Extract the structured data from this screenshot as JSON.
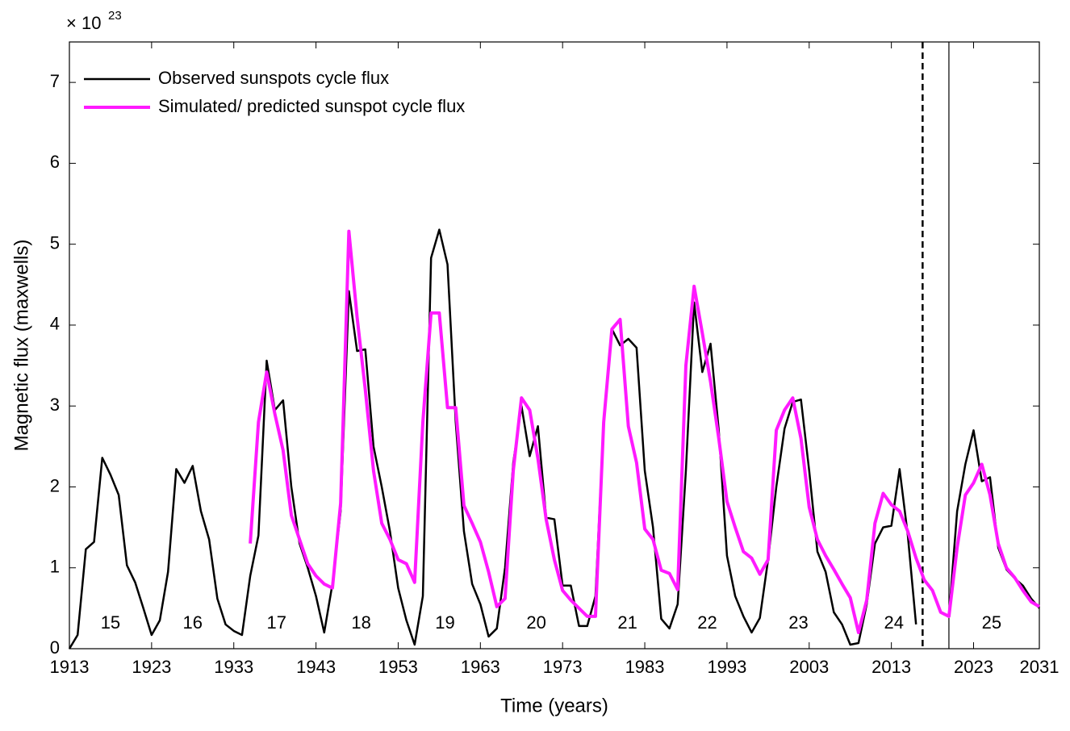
{
  "chart_data": {
    "type": "line",
    "xlabel": "Time (years)",
    "ylabel": "Magnetic flux (maxwells)",
    "multiplier": "× 10",
    "multiplier_exp": "23",
    "x": [
      1913,
      1914,
      1915,
      1916,
      1917,
      1918,
      1919,
      1920,
      1921,
      1922,
      1923,
      1924,
      1925,
      1926,
      1927,
      1928,
      1929,
      1930,
      1931,
      1932,
      1933,
      1934,
      1935,
      1936,
      1937,
      1938,
      1939,
      1940,
      1941,
      1942,
      1943,
      1944,
      1945,
      1946,
      1947,
      1948,
      1949,
      1950,
      1951,
      1952,
      1953,
      1954,
      1955,
      1956,
      1957,
      1958,
      1959,
      1960,
      1961,
      1962,
      1963,
      1964,
      1965,
      1966,
      1967,
      1968,
      1969,
      1970,
      1971,
      1972,
      1973,
      1974,
      1975,
      1976,
      1977,
      1978,
      1979,
      1980,
      1981,
      1982,
      1983,
      1984,
      1985,
      1986,
      1987,
      1988,
      1989,
      1990,
      1991,
      1992,
      1993,
      1994,
      1995,
      1996,
      1997,
      1998,
      1999,
      2000,
      2001,
      2002,
      2003,
      2004,
      2005,
      2006,
      2007,
      2008,
      2009,
      2010,
      2011,
      2012,
      2013,
      2014,
      2015,
      2016,
      2017,
      2018,
      2019,
      2020,
      2021,
      2022,
      2023,
      2024,
      2025,
      2026,
      2027,
      2028,
      2029,
      2030,
      2031
    ],
    "series": [
      {
        "name": "Observed sunspots cycle flux",
        "color": "#000000",
        "values": [
          0,
          0.17,
          1.23,
          1.32,
          2.36,
          2.15,
          1.9,
          1.03,
          0.82,
          0.5,
          0.17,
          0.35,
          0.95,
          2.22,
          2.05,
          2.26,
          1.7,
          1.35,
          0.62,
          0.3,
          0.22,
          0.17,
          0.9,
          1.4,
          3.56,
          2.95,
          3.07,
          2.0,
          1.3,
          1.0,
          0.65,
          0.2,
          0.8,
          1.7,
          4.42,
          3.68,
          3.7,
          2.5,
          2.0,
          1.45,
          0.75,
          0.35,
          0.05,
          0.65,
          4.83,
          5.18,
          4.75,
          2.8,
          1.45,
          0.8,
          0.55,
          0.15,
          0.25,
          1.0,
          2.3,
          3.0,
          2.38,
          2.75,
          1.62,
          1.6,
          0.78,
          0.78,
          0.28,
          0.28,
          0.65,
          2.8,
          3.95,
          3.75,
          3.83,
          3.72,
          2.2,
          1.5,
          0.37,
          0.25,
          0.55,
          2.2,
          4.28,
          3.42,
          3.77,
          2.7,
          1.15,
          0.65,
          0.4,
          0.2,
          0.38,
          1.1,
          2.0,
          2.72,
          3.05,
          3.08,
          2.2,
          1.2,
          0.95,
          0.45,
          0.3,
          0.05,
          0.07,
          0.55,
          1.3,
          1.5,
          1.52,
          2.22,
          1.4,
          0.3,
          null,
          null,
          null,
          0.4,
          1.7,
          2.28,
          2.7,
          2.07,
          2.12,
          1.25,
          0.98,
          0.87,
          0.78,
          0.62,
          0.5
        ]
      },
      {
        "name": "Simulated/ predicted sunspot cycle flux",
        "color": "#ff1aff",
        "values": [
          null,
          null,
          null,
          null,
          null,
          null,
          null,
          null,
          null,
          null,
          null,
          null,
          null,
          null,
          null,
          null,
          null,
          null,
          null,
          null,
          null,
          null,
          1.3,
          2.8,
          3.42,
          2.9,
          2.45,
          1.65,
          1.35,
          1.05,
          0.9,
          0.8,
          0.75,
          1.8,
          5.16,
          4.1,
          3.2,
          2.2,
          1.55,
          1.35,
          1.1,
          1.05,
          0.82,
          2.8,
          4.15,
          4.15,
          2.98,
          2.98,
          1.77,
          1.55,
          1.32,
          0.95,
          0.52,
          0.62,
          2.2,
          3.1,
          2.95,
          2.35,
          1.6,
          1.1,
          0.72,
          0.6,
          0.5,
          0.4,
          0.4,
          2.8,
          3.95,
          4.07,
          2.75,
          2.3,
          1.48,
          1.35,
          0.97,
          0.93,
          0.73,
          3.5,
          4.48,
          3.9,
          3.3,
          2.6,
          1.82,
          1.5,
          1.2,
          1.12,
          0.92,
          1.1,
          2.7,
          2.95,
          3.1,
          2.6,
          1.75,
          1.35,
          1.15,
          0.98,
          0.8,
          0.63,
          0.2,
          0.6,
          1.55,
          1.92,
          1.78,
          1.7,
          1.45,
          1.12,
          0.85,
          0.72,
          0.45,
          0.4,
          1.25,
          1.9,
          2.05,
          2.28,
          1.9,
          1.3,
          1.0,
          0.88,
          0.72,
          0.58,
          0.52
        ]
      }
    ],
    "annotations": [
      {
        "text": "15",
        "x": 1918
      },
      {
        "text": "16",
        "x": 1928
      },
      {
        "text": "17",
        "x": 1938.2
      },
      {
        "text": "18",
        "x": 1948.5
      },
      {
        "text": "19",
        "x": 1958.7
      },
      {
        "text": "20",
        "x": 1969.8
      },
      {
        "text": "21",
        "x": 1980.9
      },
      {
        "text": "22",
        "x": 1990.6
      },
      {
        "text": "23",
        "x": 2001.7
      },
      {
        "text": "24",
        "x": 2013.3
      },
      {
        "text": "25",
        "x": 2025.2
      }
    ],
    "vlines": [
      {
        "x": 2016.8,
        "style": "dashed"
      },
      {
        "x": 2020,
        "style": "solid"
      }
    ],
    "xlim": [
      1913,
      2031
    ],
    "xticks": [
      1913,
      1923,
      1933,
      1943,
      1953,
      1963,
      1973,
      1983,
      1993,
      2003,
      2013,
      2023,
      2031
    ],
    "ylim": [
      0,
      7.5
    ],
    "yticks": [
      0,
      1,
      2,
      3,
      4,
      5,
      6,
      7
    ],
    "legend": "upper left",
    "grid": false
  }
}
